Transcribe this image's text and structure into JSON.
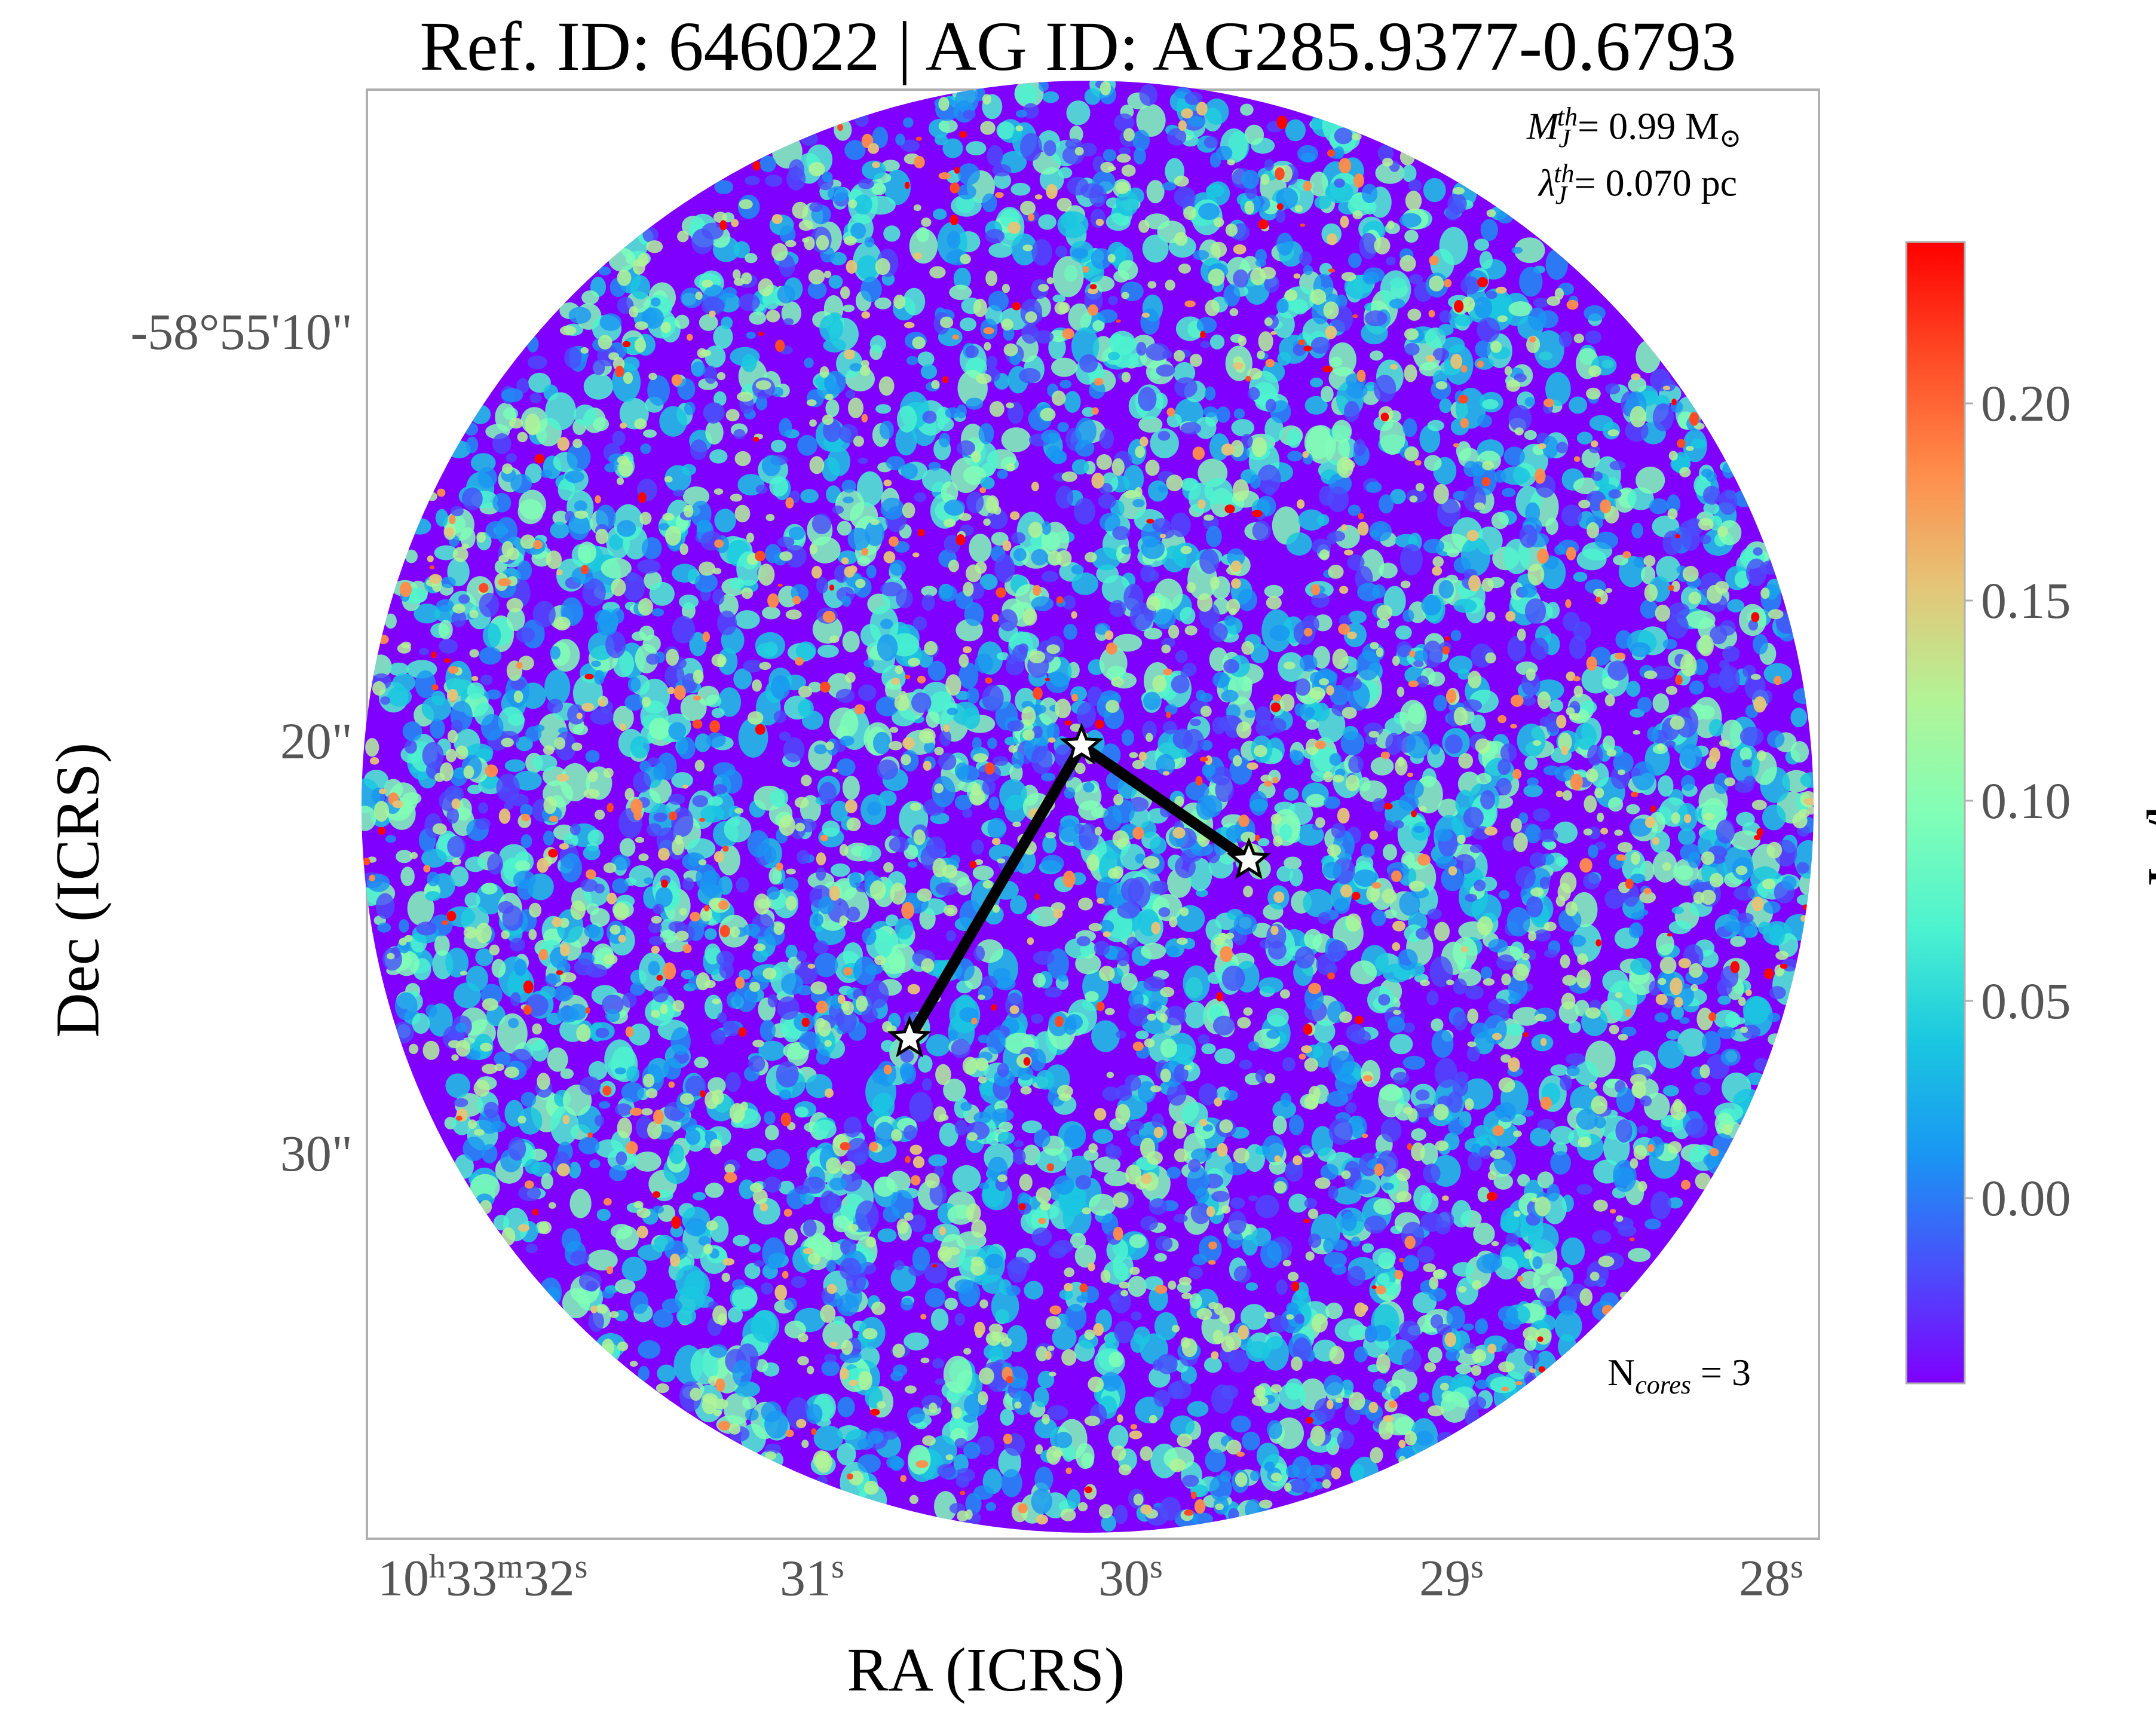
{
  "figure": {
    "title": "Ref. ID: 646022 | AG ID: AG285.9377-0.6793",
    "xlabel": "RA (ICRS)",
    "ylabel": "Dec (ICRS)"
  },
  "axes": {
    "x_ticks": [
      {
        "h": "10",
        "m": "33",
        "s": "32"
      },
      {
        "h": "",
        "m": "",
        "s": "31"
      },
      {
        "h": "",
        "m": "",
        "s": "30"
      },
      {
        "h": "",
        "m": "",
        "s": "29"
      },
      {
        "h": "",
        "m": "",
        "s": "28"
      }
    ],
    "x_unit_h": "h",
    "x_unit_m": "m",
    "x_unit_s": "s",
    "y_ticks": [
      "-58°55'10\"",
      "20\"",
      "30\""
    ]
  },
  "annotations": {
    "mj_symbol": "M",
    "mj_sub": "J",
    "mj_sup": "th",
    "mj_value": "= 0.99 M",
    "mj_unit_symbol": "⊙",
    "lj_symbol": "λ",
    "lj_sub": "J",
    "lj_sup": "th",
    "lj_value": "= 0.070 pc",
    "ncores_prefix": "N",
    "ncores_sub": "cores",
    "ncores_value": " = 3"
  },
  "colorbar": {
    "label": "mJy/beam",
    "ticks": [
      "0.20",
      "0.15",
      "0.10",
      "0.05",
      "0.00"
    ],
    "colormap": [
      "#7f00ff",
      "#4a4efb",
      "#1996f3",
      "#1ac7e0",
      "#4df3cf",
      "#81feb6",
      "#b3f396",
      "#e5c477",
      "#ff8c4a",
      "#ff4a25",
      "#ff0000"
    ]
  },
  "cores": {
    "count": 3,
    "marker_color": "#ffffff",
    "connector_color": "#000000"
  },
  "colors": {
    "frame": "#b0b0b0",
    "background_noise": "#7f00ff"
  }
}
